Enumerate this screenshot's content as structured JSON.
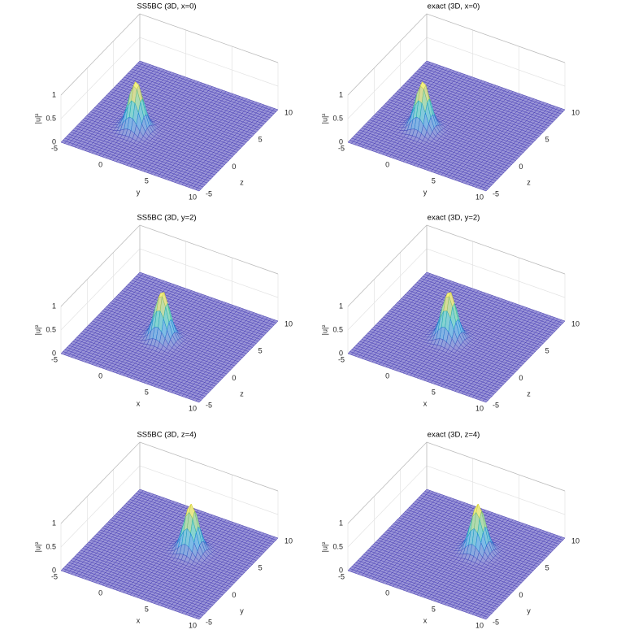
{
  "chart_data": [
    {
      "type": "surface",
      "title": "SS5BC (3D, x=0)",
      "xlabel": "y",
      "ylabel": "z",
      "zlabel": "|u|²",
      "xlim": [
        -5,
        10
      ],
      "xticks": [
        -5,
        0,
        5,
        10
      ],
      "ylim": [
        -5,
        10
      ],
      "yticks": [
        -5,
        0,
        5,
        10
      ],
      "zlim": [
        0,
        1
      ],
      "zticks": [
        0,
        0.5,
        1
      ],
      "grid": true,
      "peak": {
        "x": 0,
        "y": 0.5,
        "height": 1,
        "width": 0.7
      }
    },
    {
      "type": "surface",
      "title": "exact (3D, x=0)",
      "xlabel": "y",
      "ylabel": "z",
      "zlabel": "|u|²",
      "xlim": [
        -5,
        10
      ],
      "xticks": [
        -5,
        0,
        5,
        10
      ],
      "ylim": [
        -5,
        10
      ],
      "yticks": [
        -5,
        0,
        5,
        10
      ],
      "zlim": [
        0,
        1
      ],
      "zticks": [
        0,
        0.5,
        1
      ],
      "grid": true,
      "peak": {
        "x": 0,
        "y": 0.5,
        "height": 1,
        "width": 0.7
      }
    },
    {
      "type": "surface",
      "title": "SS5BC (3D, y=2)",
      "xlabel": "x",
      "ylabel": "z",
      "zlabel": "|u|²",
      "xlim": [
        -5,
        10
      ],
      "xticks": [
        -5,
        0,
        5,
        10
      ],
      "ylim": [
        -5,
        10
      ],
      "yticks": [
        -5,
        0,
        5,
        10
      ],
      "zlim": [
        0,
        1
      ],
      "zticks": [
        0,
        0.5,
        1
      ],
      "grid": true,
      "peak": {
        "x": 2,
        "y": 2,
        "height": 1,
        "width": 0.7
      }
    },
    {
      "type": "surface",
      "title": "exact (3D, y=2)",
      "xlabel": "x",
      "ylabel": "z",
      "zlabel": "|u|²",
      "xlim": [
        -5,
        10
      ],
      "xticks": [
        -5,
        0,
        5,
        10
      ],
      "ylim": [
        -5,
        10
      ],
      "yticks": [
        -5,
        0,
        5,
        10
      ],
      "zlim": [
        0,
        1
      ],
      "zticks": [
        0,
        0.5,
        1
      ],
      "grid": true,
      "peak": {
        "x": 2,
        "y": 2,
        "height": 1,
        "width": 0.7
      }
    },
    {
      "type": "surface",
      "title": "SS5BC (3D, z=4)",
      "xlabel": "x",
      "ylabel": "y",
      "zlabel": "|u|²",
      "xlim": [
        -5,
        10
      ],
      "xticks": [
        -5,
        0,
        5,
        10
      ],
      "ylim": [
        -5,
        10
      ],
      "yticks": [
        -5,
        0,
        5,
        10
      ],
      "zlim": [
        0,
        1
      ],
      "zticks": [
        0,
        0.5,
        1
      ],
      "grid": true,
      "peak": {
        "x": 4,
        "y": 4,
        "height": 1,
        "width": 0.7
      }
    },
    {
      "type": "surface",
      "title": "exact (3D, z=4)",
      "xlabel": "x",
      "ylabel": "y",
      "zlabel": "|u|²",
      "xlim": [
        -5,
        10
      ],
      "xticks": [
        -5,
        0,
        5,
        10
      ],
      "ylim": [
        -5,
        10
      ],
      "yticks": [
        -5,
        0,
        5,
        10
      ],
      "zlim": [
        0,
        1
      ],
      "zticks": [
        0,
        0.5,
        1
      ],
      "grid": true,
      "peak": {
        "x": 4,
        "y": 4,
        "height": 1,
        "width": 0.7
      }
    }
  ]
}
